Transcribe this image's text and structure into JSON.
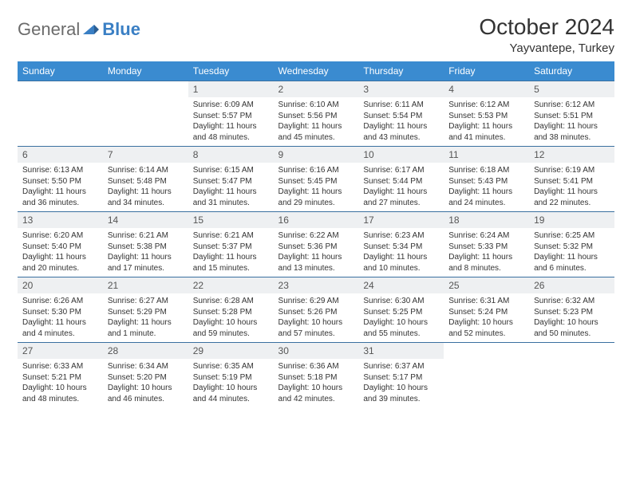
{
  "logo": {
    "part1": "General",
    "part2": "Blue"
  },
  "title": "October 2024",
  "location": "Yayvantepe, Turkey",
  "colors": {
    "header_bg": "#3a8bd0",
    "header_text": "#ffffff",
    "daynum_bg": "#eef0f2",
    "row_border": "#3a70a0",
    "logo_gray": "#6b6b6b",
    "logo_blue": "#3a7fc4"
  },
  "daynames": [
    "Sunday",
    "Monday",
    "Tuesday",
    "Wednesday",
    "Thursday",
    "Friday",
    "Saturday"
  ],
  "weeks": [
    [
      {
        "n": "",
        "sr": "",
        "ss": "",
        "dl": ""
      },
      {
        "n": "",
        "sr": "",
        "ss": "",
        "dl": ""
      },
      {
        "n": "1",
        "sr": "Sunrise: 6:09 AM",
        "ss": "Sunset: 5:57 PM",
        "dl": "Daylight: 11 hours and 48 minutes."
      },
      {
        "n": "2",
        "sr": "Sunrise: 6:10 AM",
        "ss": "Sunset: 5:56 PM",
        "dl": "Daylight: 11 hours and 45 minutes."
      },
      {
        "n": "3",
        "sr": "Sunrise: 6:11 AM",
        "ss": "Sunset: 5:54 PM",
        "dl": "Daylight: 11 hours and 43 minutes."
      },
      {
        "n": "4",
        "sr": "Sunrise: 6:12 AM",
        "ss": "Sunset: 5:53 PM",
        "dl": "Daylight: 11 hours and 41 minutes."
      },
      {
        "n": "5",
        "sr": "Sunrise: 6:12 AM",
        "ss": "Sunset: 5:51 PM",
        "dl": "Daylight: 11 hours and 38 minutes."
      }
    ],
    [
      {
        "n": "6",
        "sr": "Sunrise: 6:13 AM",
        "ss": "Sunset: 5:50 PM",
        "dl": "Daylight: 11 hours and 36 minutes."
      },
      {
        "n": "7",
        "sr": "Sunrise: 6:14 AM",
        "ss": "Sunset: 5:48 PM",
        "dl": "Daylight: 11 hours and 34 minutes."
      },
      {
        "n": "8",
        "sr": "Sunrise: 6:15 AM",
        "ss": "Sunset: 5:47 PM",
        "dl": "Daylight: 11 hours and 31 minutes."
      },
      {
        "n": "9",
        "sr": "Sunrise: 6:16 AM",
        "ss": "Sunset: 5:45 PM",
        "dl": "Daylight: 11 hours and 29 minutes."
      },
      {
        "n": "10",
        "sr": "Sunrise: 6:17 AM",
        "ss": "Sunset: 5:44 PM",
        "dl": "Daylight: 11 hours and 27 minutes."
      },
      {
        "n": "11",
        "sr": "Sunrise: 6:18 AM",
        "ss": "Sunset: 5:43 PM",
        "dl": "Daylight: 11 hours and 24 minutes."
      },
      {
        "n": "12",
        "sr": "Sunrise: 6:19 AM",
        "ss": "Sunset: 5:41 PM",
        "dl": "Daylight: 11 hours and 22 minutes."
      }
    ],
    [
      {
        "n": "13",
        "sr": "Sunrise: 6:20 AM",
        "ss": "Sunset: 5:40 PM",
        "dl": "Daylight: 11 hours and 20 minutes."
      },
      {
        "n": "14",
        "sr": "Sunrise: 6:21 AM",
        "ss": "Sunset: 5:38 PM",
        "dl": "Daylight: 11 hours and 17 minutes."
      },
      {
        "n": "15",
        "sr": "Sunrise: 6:21 AM",
        "ss": "Sunset: 5:37 PM",
        "dl": "Daylight: 11 hours and 15 minutes."
      },
      {
        "n": "16",
        "sr": "Sunrise: 6:22 AM",
        "ss": "Sunset: 5:36 PM",
        "dl": "Daylight: 11 hours and 13 minutes."
      },
      {
        "n": "17",
        "sr": "Sunrise: 6:23 AM",
        "ss": "Sunset: 5:34 PM",
        "dl": "Daylight: 11 hours and 10 minutes."
      },
      {
        "n": "18",
        "sr": "Sunrise: 6:24 AM",
        "ss": "Sunset: 5:33 PM",
        "dl": "Daylight: 11 hours and 8 minutes."
      },
      {
        "n": "19",
        "sr": "Sunrise: 6:25 AM",
        "ss": "Sunset: 5:32 PM",
        "dl": "Daylight: 11 hours and 6 minutes."
      }
    ],
    [
      {
        "n": "20",
        "sr": "Sunrise: 6:26 AM",
        "ss": "Sunset: 5:30 PM",
        "dl": "Daylight: 11 hours and 4 minutes."
      },
      {
        "n": "21",
        "sr": "Sunrise: 6:27 AM",
        "ss": "Sunset: 5:29 PM",
        "dl": "Daylight: 11 hours and 1 minute."
      },
      {
        "n": "22",
        "sr": "Sunrise: 6:28 AM",
        "ss": "Sunset: 5:28 PM",
        "dl": "Daylight: 10 hours and 59 minutes."
      },
      {
        "n": "23",
        "sr": "Sunrise: 6:29 AM",
        "ss": "Sunset: 5:26 PM",
        "dl": "Daylight: 10 hours and 57 minutes."
      },
      {
        "n": "24",
        "sr": "Sunrise: 6:30 AM",
        "ss": "Sunset: 5:25 PM",
        "dl": "Daylight: 10 hours and 55 minutes."
      },
      {
        "n": "25",
        "sr": "Sunrise: 6:31 AM",
        "ss": "Sunset: 5:24 PM",
        "dl": "Daylight: 10 hours and 52 minutes."
      },
      {
        "n": "26",
        "sr": "Sunrise: 6:32 AM",
        "ss": "Sunset: 5:23 PM",
        "dl": "Daylight: 10 hours and 50 minutes."
      }
    ],
    [
      {
        "n": "27",
        "sr": "Sunrise: 6:33 AM",
        "ss": "Sunset: 5:21 PM",
        "dl": "Daylight: 10 hours and 48 minutes."
      },
      {
        "n": "28",
        "sr": "Sunrise: 6:34 AM",
        "ss": "Sunset: 5:20 PM",
        "dl": "Daylight: 10 hours and 46 minutes."
      },
      {
        "n": "29",
        "sr": "Sunrise: 6:35 AM",
        "ss": "Sunset: 5:19 PM",
        "dl": "Daylight: 10 hours and 44 minutes."
      },
      {
        "n": "30",
        "sr": "Sunrise: 6:36 AM",
        "ss": "Sunset: 5:18 PM",
        "dl": "Daylight: 10 hours and 42 minutes."
      },
      {
        "n": "31",
        "sr": "Sunrise: 6:37 AM",
        "ss": "Sunset: 5:17 PM",
        "dl": "Daylight: 10 hours and 39 minutes."
      },
      {
        "n": "",
        "sr": "",
        "ss": "",
        "dl": ""
      },
      {
        "n": "",
        "sr": "",
        "ss": "",
        "dl": ""
      }
    ]
  ]
}
